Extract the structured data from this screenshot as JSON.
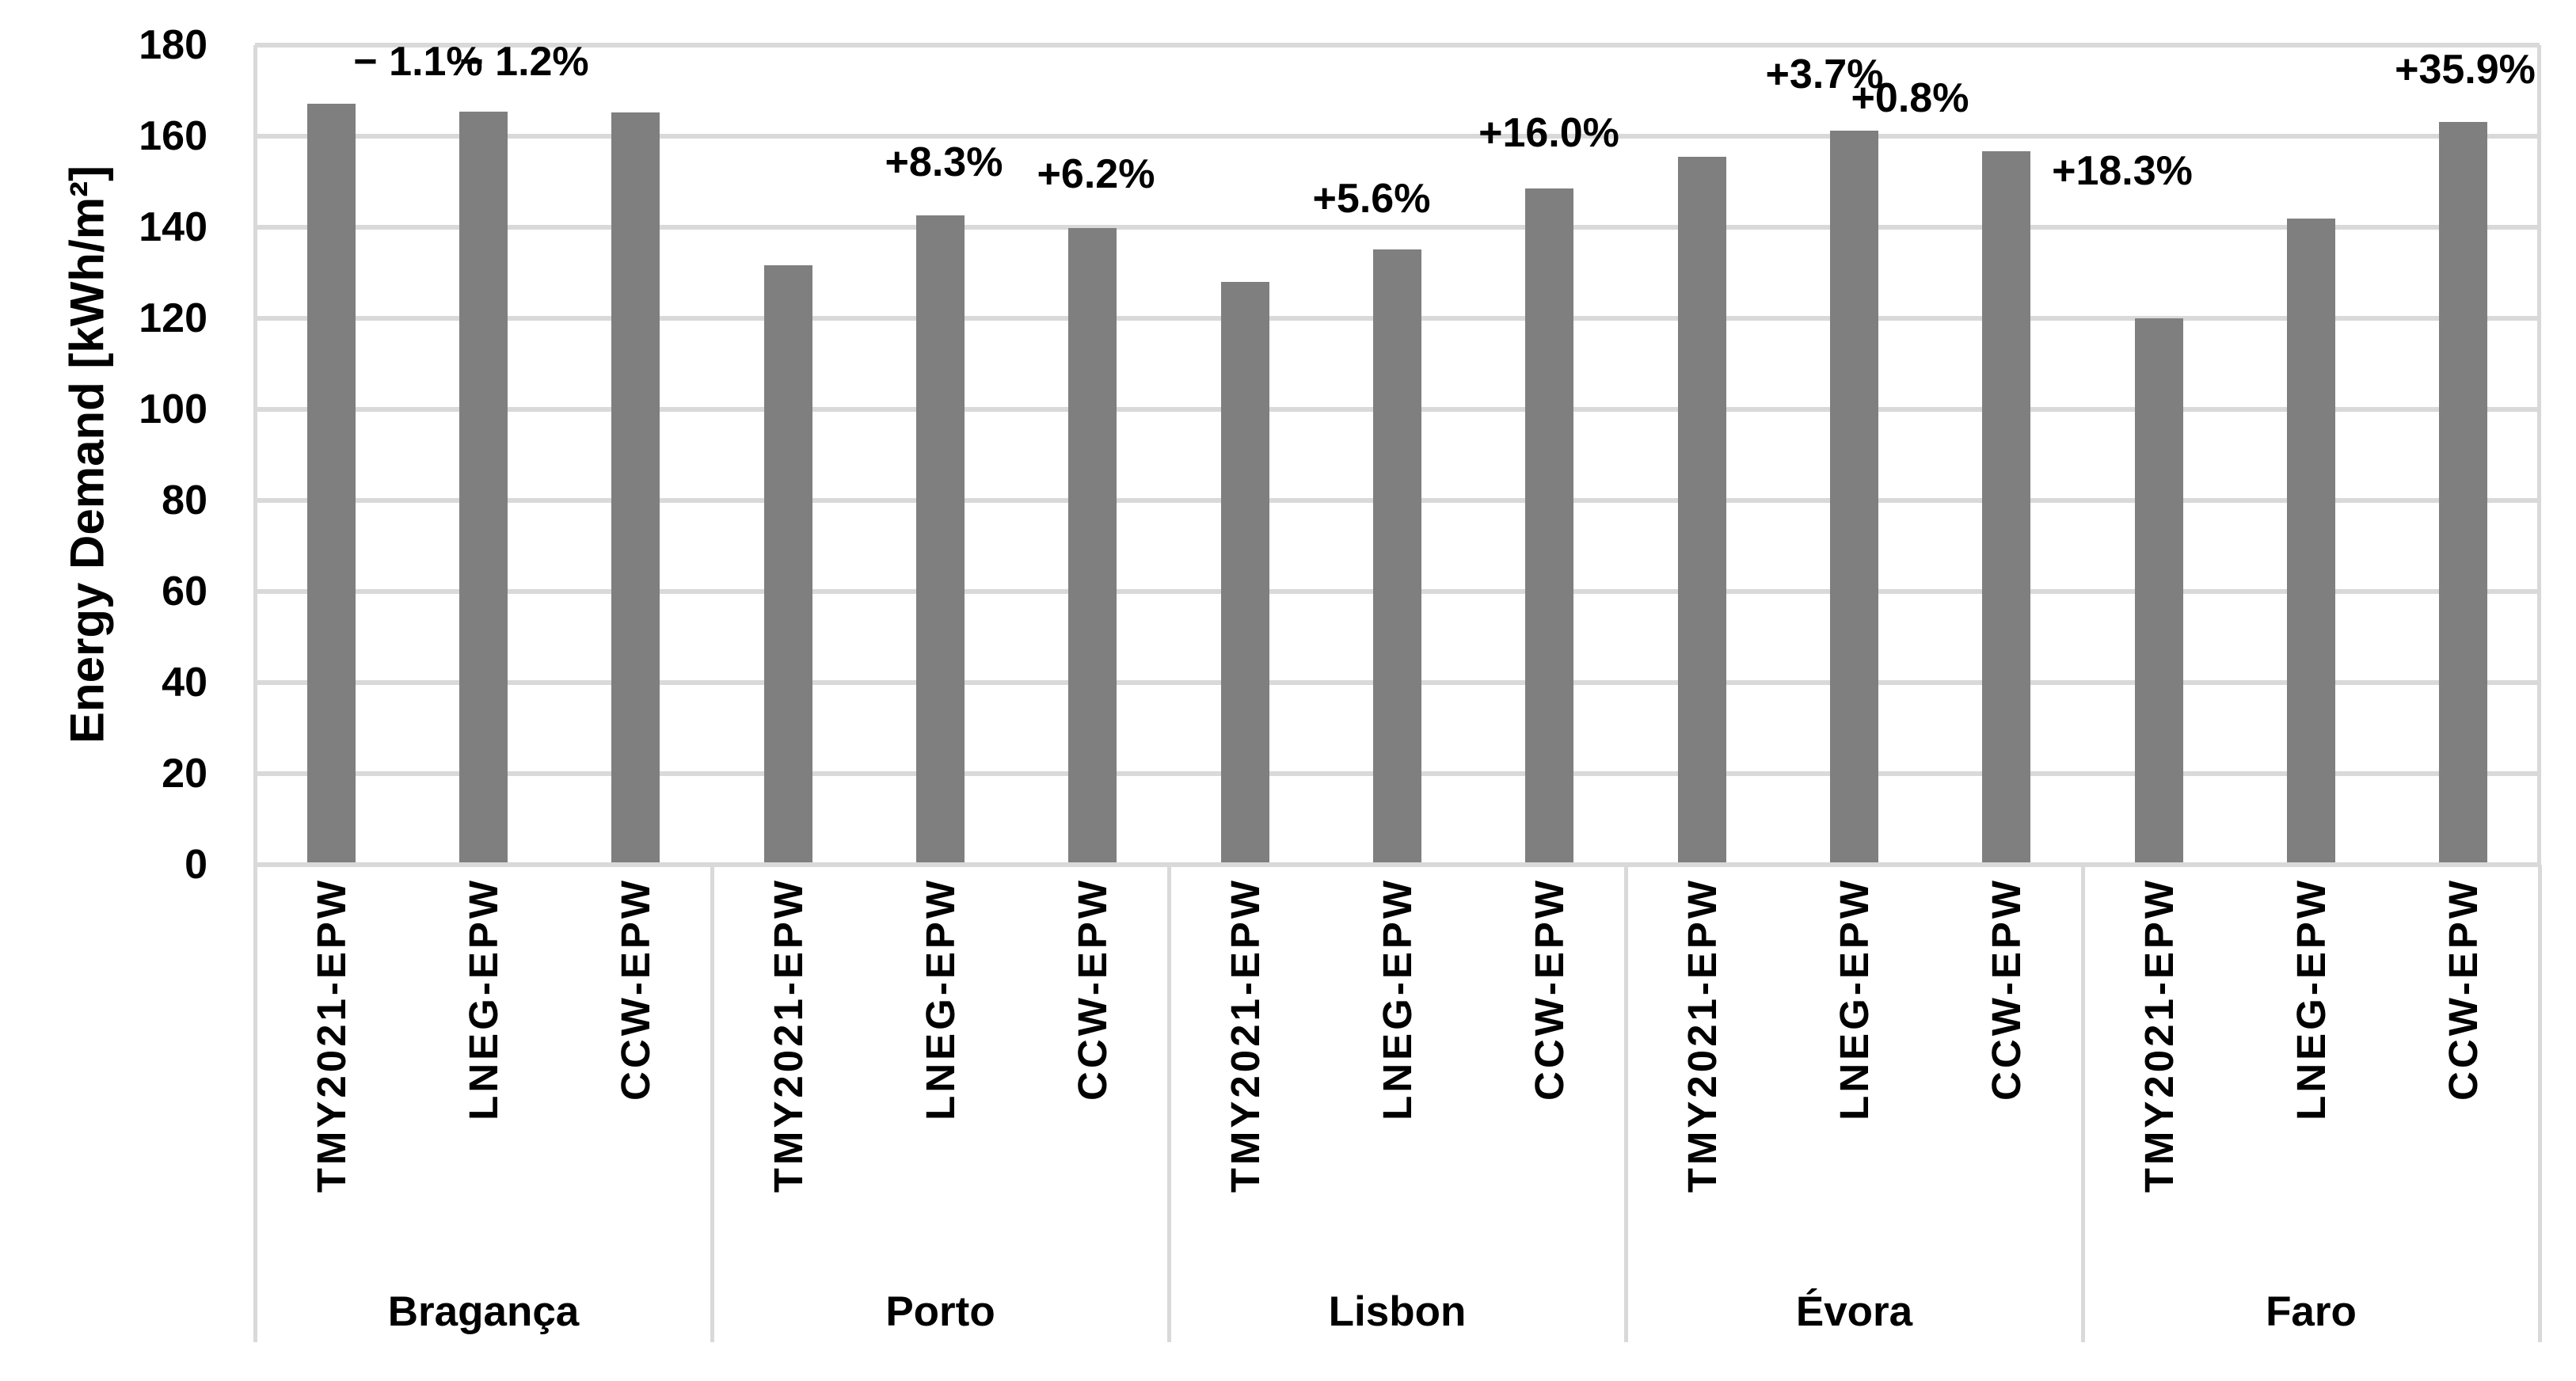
{
  "chart_data": {
    "type": "bar",
    "title": "",
    "xlabel": "",
    "ylabel": "Energy Demand [kWh/m²]",
    "ylim": [
      0,
      180
    ],
    "ytick_step": 20,
    "yticks": [
      180,
      160,
      140,
      120,
      100,
      80,
      60,
      40,
      20,
      0
    ],
    "grid": true,
    "legend": null,
    "bar_color": "#7F7F7F",
    "gridline_color": "#D9D9D9",
    "text_color": "#000000",
    "background_color": "#FFFFFF",
    "categories": [
      "Bragança",
      "Porto",
      "Lisbon",
      "Évora",
      "Faro"
    ],
    "series_labels": [
      "TMY2021-EPW",
      "LNEG-EPW",
      "CCW-EPW"
    ],
    "groups": [
      {
        "city": "Bragança",
        "bars": [
          {
            "label": "TMY2021-EPW",
            "value": 167.2,
            "annotation": null
          },
          {
            "label": "LNEG-EPW",
            "value": 165.4,
            "annotation": {
              "text": "− 1.1%",
              "x": 206,
              "y": 21
            }
          },
          {
            "label": "CCW-EPW",
            "value": 165.2,
            "annotation": {
              "text": "− 1.2%",
              "x": 340,
              "y": 21
            }
          }
        ]
      },
      {
        "city": "Porto",
        "bars": [
          {
            "label": "TMY2021-EPW",
            "value": 131.7,
            "annotation": null
          },
          {
            "label": "LNEG-EPW",
            "value": 142.6,
            "annotation": {
              "text": "+8.3%",
              "x": 870,
              "y": 148
            }
          },
          {
            "label": "CCW-EPW",
            "value": 139.9,
            "annotation": {
              "text": "+6.2%",
              "x": 1062,
              "y": 163
            }
          }
        ]
      },
      {
        "city": "Lisbon",
        "bars": [
          {
            "label": "TMY2021-EPW",
            "value": 128.0,
            "annotation": null
          },
          {
            "label": "LNEG-EPW",
            "value": 135.2,
            "annotation": {
              "text": "+5.6%",
              "x": 1410,
              "y": 194
            }
          },
          {
            "label": "CCW-EPW",
            "value": 148.5,
            "annotation": {
              "text": "+16.0%",
              "x": 1634,
              "y": 111
            }
          }
        ]
      },
      {
        "city": "Évora",
        "bars": [
          {
            "label": "TMY2021-EPW",
            "value": 155.5,
            "annotation": null
          },
          {
            "label": "LNEG-EPW",
            "value": 161.3,
            "annotation": {
              "text": "+3.7%",
              "x": 1982,
              "y": 37
            }
          },
          {
            "label": "CCW-EPW",
            "value": 156.7,
            "annotation": {
              "text": "+0.8%",
              "x": 2090,
              "y": 67
            }
          }
        ]
      },
      {
        "city": "Faro",
        "bars": [
          {
            "label": "TMY2021-EPW",
            "value": 120.0,
            "annotation": null
          },
          {
            "label": "LNEG-EPW",
            "value": 141.9,
            "annotation": {
              "text": "+18.3%",
              "x": 2358,
              "y": 159
            }
          },
          {
            "label": "CCW-EPW",
            "value": 163.1,
            "annotation": {
              "text": "+35.9%",
              "x": 2791,
              "y": 31
            }
          }
        ]
      }
    ]
  }
}
